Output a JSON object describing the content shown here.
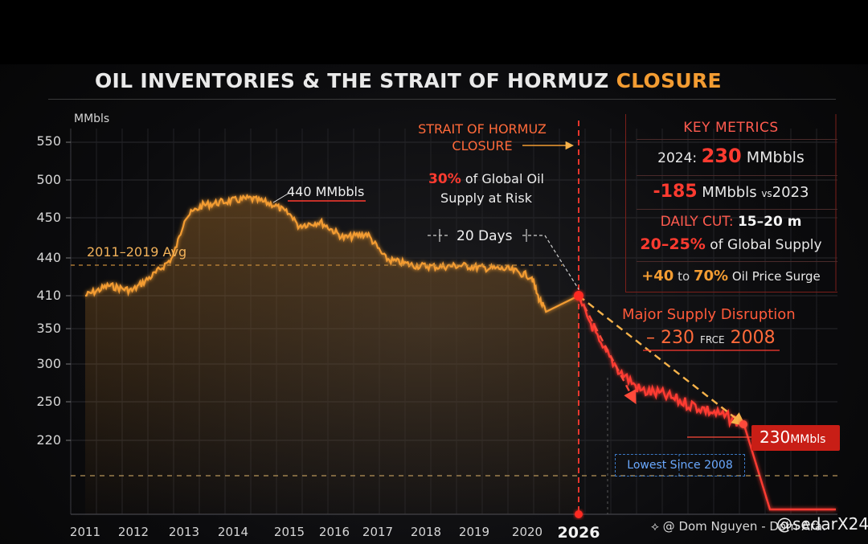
{
  "title": {
    "main": "OIL INVENTORIES & THE STRAIT OF HORMUZ ",
    "accent": "CLOSURE"
  },
  "colors": {
    "accent_orange": "#f39c32",
    "alert_red": "#ff3b30",
    "highlight_blue": "#3b78c4"
  },
  "chart_data": {
    "type": "line",
    "ylabel": "MMbls",
    "y_ticks": [
      "550",
      "500",
      "450",
      "440",
      "410",
      "350",
      "300",
      "250",
      "220"
    ],
    "x_ticks": [
      "2011",
      "2012",
      "2013",
      "2014",
      "2015",
      "2016",
      "2017",
      "2018",
      "2019",
      "2020",
      "2026"
    ],
    "grid": true,
    "series": [
      {
        "color": "#f39c32",
        "x": [
          "2011.0",
          "2011.5",
          "2012.0",
          "2012.5",
          "2013.0",
          "2013.5",
          "2014.0",
          "2014.5",
          "2015.0",
          "2015.5",
          "2016.0",
          "2016.5",
          "2017.0",
          "2017.5",
          "2018.0",
          "2018.5",
          "2019.0",
          "2019.5",
          "2020.0",
          "2020.5",
          "2020.8"
        ],
        "values": [
          410,
          418,
          414,
          428,
          445,
          467,
          472,
          476,
          468,
          448,
          449,
          445,
          446,
          438,
          434,
          433,
          434,
          432,
          431,
          425,
          388
        ]
      },
      {
        "color": "#ff3b30",
        "x": [
          "2026 start",
          "",
          "",
          "",
          "",
          "",
          "",
          "",
          ""
        ],
        "values": [
          410,
          330,
          290,
          265,
          260,
          250,
          240,
          232,
          228
        ]
      }
    ],
    "reference_lines": [
      {
        "label": "2011–2019 Avg",
        "value": 440
      }
    ]
  },
  "annotations": {
    "peak_label": "440 MMbbls",
    "avg_label": "2011–2019 Avg",
    "days_label": "20 Days",
    "hormuz_line1": "STRAIT OF HORMUZ",
    "hormuz_line2": "CLOSURE",
    "supply_pct": "30%",
    "supply_text1": " of Global Oil",
    "supply_text2": "Supply at Risk",
    "disruption_title": "Major Supply Disruption",
    "disruption_value": "230",
    "disruption_small": "FRCE",
    "disruption_year": "2008",
    "end_value": "230",
    "end_unit": "MMbls",
    "lowest_label": "Lowest Since 2008"
  },
  "key_metrics": {
    "title": "KEY METRICS",
    "row1_prefix": "2024: ",
    "row1_value": "230",
    "row1_unit": " MMbbls",
    "row2_value": "-185",
    "row2_unit": " MMbbls ",
    "row2_small": "vs",
    "row2_year": "2023",
    "row3_label": "DAILY CUT: ",
    "row3_value": "15–20 m",
    "row4_value": "20–25%",
    "row4_text": " of Global Supply",
    "row5_value": "+40",
    "row5_small": " to ",
    "row5_value2": "70%",
    "row5_text": " Oil Price Surge"
  },
  "watermark": {
    "left": "⟡ @ Dom Nguyen - Dom Ara.",
    "right": "@sedarX24"
  }
}
